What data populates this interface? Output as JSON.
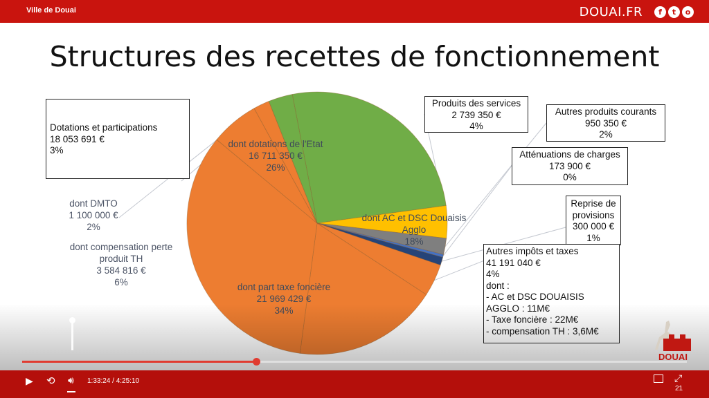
{
  "header": {
    "site_name": "Ville de Douai",
    "brand": "DOUAI.FR",
    "social_icons": [
      "f",
      "t",
      "o"
    ]
  },
  "slide": {
    "title": "Structures des recettes de fonctionnement",
    "external_labels": {
      "dotations": [
        "Dotations et participations",
        "18 053 691 €",
        "3%"
      ],
      "produits_services": [
        "Produits des services",
        "2 739 350 €",
        "4%"
      ],
      "autres_produits": [
        "Autres produits courants",
        "950 350 €",
        "2%"
      ],
      "attenuations": [
        "Atténuations de charges",
        "173 900 €",
        "0%"
      ],
      "reprise": [
        "Reprise de",
        "provisions",
        "300 000 €",
        "1%"
      ],
      "autres_impots": [
        "Autres impôts et taxes",
        "41 191 040 €",
        "4%",
        "dont :",
        "- AC et DSC DOUAISIS",
        "AGGLO : 11M€",
        "- Taxe foncière : 22M€",
        "- compensation TH : 3,6M€"
      ],
      "dmto": [
        "dont DMTO",
        "1 100 000 €",
        "2%"
      ],
      "compensation": [
        "dont compensation perte",
        "produit TH",
        "3 584 816 €",
        "6%"
      ]
    }
  },
  "chart_data": {
    "type": "pie",
    "title": "Structures des recettes de fonctionnement",
    "slices": [
      {
        "name": "dont dotations de l'Etat",
        "value": 16711350,
        "percent": 26,
        "color": "#70ad47",
        "label": [
          "dont dotations de l'Etat",
          "16 711 350 €",
          "26%"
        ]
      },
      {
        "name": "Produits des services",
        "value": 2739350,
        "percent": 4,
        "color": "#ffc000"
      },
      {
        "name": "Autres produits courants",
        "value": 950350,
        "percent": 2,
        "color": "#7f7f7f"
      },
      {
        "name": "Atténuations de charges",
        "value": 173900,
        "percent": 0,
        "color": "#4472c4"
      },
      {
        "name": "Reprise de provisions",
        "value": 300000,
        "percent": 1,
        "color": "#264478"
      },
      {
        "name": "Autres impôts et taxes",
        "value": 41191040,
        "percent": 4,
        "color": "#ed7d31"
      },
      {
        "name": "dont AC et DSC Douaisis Agglo",
        "value": 11000000,
        "percent": 18,
        "color": "#ed7d31",
        "label": [
          "dont AC et DSC Douaisis",
          "Agglo",
          "",
          "18%"
        ]
      },
      {
        "name": "dont part taxe foncière",
        "value": 21969429,
        "percent": 34,
        "color": "#ed7d31",
        "label": [
          "dont part taxe foncière",
          "21 969 429 €",
          "34%"
        ]
      },
      {
        "name": "dont compensation perte produit TH",
        "value": 3584816,
        "percent": 6,
        "color": "#ed7d31"
      },
      {
        "name": "dont DMTO",
        "value": 1100000,
        "percent": 2,
        "color": "#ed7d31"
      },
      {
        "name": "Dotations et participations",
        "value": 18053691,
        "percent": 3,
        "color": "#70ad47"
      }
    ]
  },
  "player": {
    "current_time": "1:33:24",
    "separator": "/",
    "duration": "4:25:10",
    "progress": 0.352,
    "logo_text": "DOUAI",
    "badge": "21"
  }
}
